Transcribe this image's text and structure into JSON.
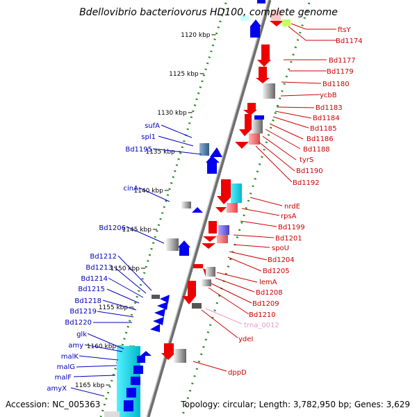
{
  "title": "Bdellovibrio bacteriovorus HD100, complete genome",
  "ticks": [
    "1120 kbp",
    "1125 kbp",
    "1130 kbp",
    "1135 kbp",
    "1140 kbp",
    "1145 kbp",
    "1150 kbp",
    "1155 kbp",
    "1160 kbp",
    "1165 kbp"
  ],
  "forward_labels": [
    "sufA",
    "spl1",
    "Bd1195",
    "cinA",
    "Bd1206",
    "Bd1212",
    "Bd1213",
    "Bd1214",
    "Bd1215",
    "Bd1218",
    "Bd1219",
    "Bd1220",
    "glk",
    "amy",
    "malK",
    "malG",
    "malF",
    "amyX"
  ],
  "reverse_labels": [
    "ftsY",
    "Bd1174",
    "Bd1177",
    "Bd1179",
    "Bd1180",
    "ycbB",
    "Bd1183",
    "Bd1184",
    "Bd1185",
    "Bd1186",
    "Bd1188",
    "tyrS",
    "Bd1190",
    "Bd1192",
    "nrdE",
    "rpsA",
    "Bd1199",
    "Bd1201",
    "spoU",
    "Bd1204",
    "Bd1205",
    "lemA",
    "Bd1208",
    "Bd1209",
    "Bd1210",
    "trna_0012",
    "ydeI",
    "dppD"
  ],
  "footer": {
    "accession": "Accession: NC_005363",
    "topology": "Topology: circular; Length: 3,782,950 bp; Genes: 3,629"
  },
  "colors": {
    "forward_gene": "#0000ee",
    "reverse_gene": "#ee0000",
    "forward_label": "#0000bb",
    "reverse_label": "#cc0000",
    "trna_label": "#e69ac8",
    "tick_dots": "#228b22",
    "backbone": "#888888"
  }
}
